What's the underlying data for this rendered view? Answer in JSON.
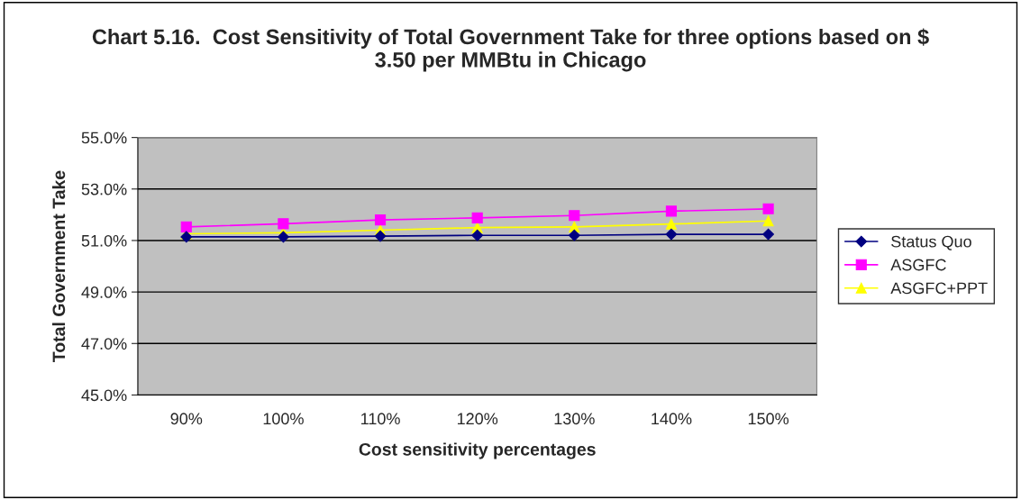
{
  "chart_data": {
    "type": "line",
    "title": "Chart 5.16.  Cost Sensitivity of Total Government Take for three options based on $ 3.50 per MMBtu in Chicago",
    "xlabel": "Cost sensitivity percentages",
    "ylabel": "Total Government Take",
    "categories": [
      "90%",
      "100%",
      "110%",
      "120%",
      "130%",
      "140%",
      "150%"
    ],
    "series": [
      {
        "name": "Status Quo",
        "color": "#000080",
        "marker": "diamond",
        "values": [
          51.14,
          51.14,
          51.17,
          51.2,
          51.2,
          51.24,
          51.24
        ]
      },
      {
        "name": "ASGFC",
        "color": "#ff00ff",
        "marker": "square",
        "values": [
          51.53,
          51.65,
          51.8,
          51.88,
          51.97,
          52.14,
          52.23
        ]
      },
      {
        "name": "ASGFC+PPT",
        "color": "#ffff00",
        "marker": "triangle",
        "values": [
          51.26,
          51.3,
          51.4,
          51.5,
          51.53,
          51.64,
          51.76
        ]
      }
    ],
    "ylim": [
      45,
      55
    ],
    "yticks": [
      {
        "value": 45,
        "label": "45.0%"
      },
      {
        "value": 47,
        "label": "47.0%"
      },
      {
        "value": 49,
        "label": "49.0%"
      },
      {
        "value": 51,
        "label": "51.0%"
      },
      {
        "value": 53,
        "label": "53.0%"
      },
      {
        "value": 55,
        "label": "55.0%"
      }
    ],
    "grid": "y",
    "legend": "right"
  }
}
